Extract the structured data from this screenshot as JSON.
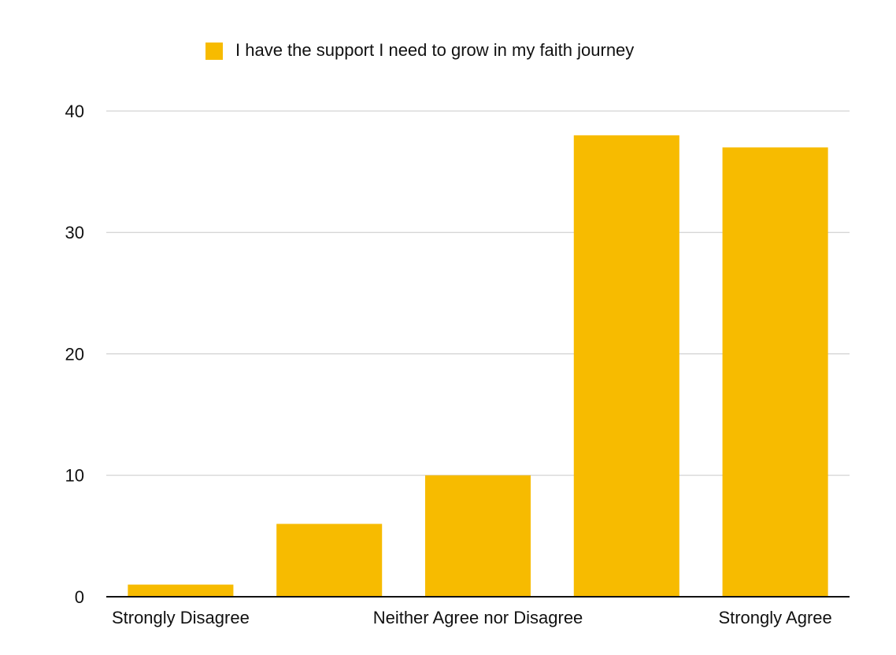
{
  "chart_data": {
    "type": "bar",
    "categories": [
      "Strongly Disagree",
      null,
      "Neither Agree nor Disagree",
      null,
      "Strongly Agree"
    ],
    "series": [
      {
        "name": "I have the support I need to grow in my faith journey",
        "color": "#f7bb00",
        "values": [
          1,
          6,
          10,
          38,
          37
        ]
      }
    ],
    "ylim": [
      0,
      40
    ],
    "yticks": [
      0,
      10,
      20,
      30,
      40
    ],
    "grid": true,
    "legend": "top"
  }
}
